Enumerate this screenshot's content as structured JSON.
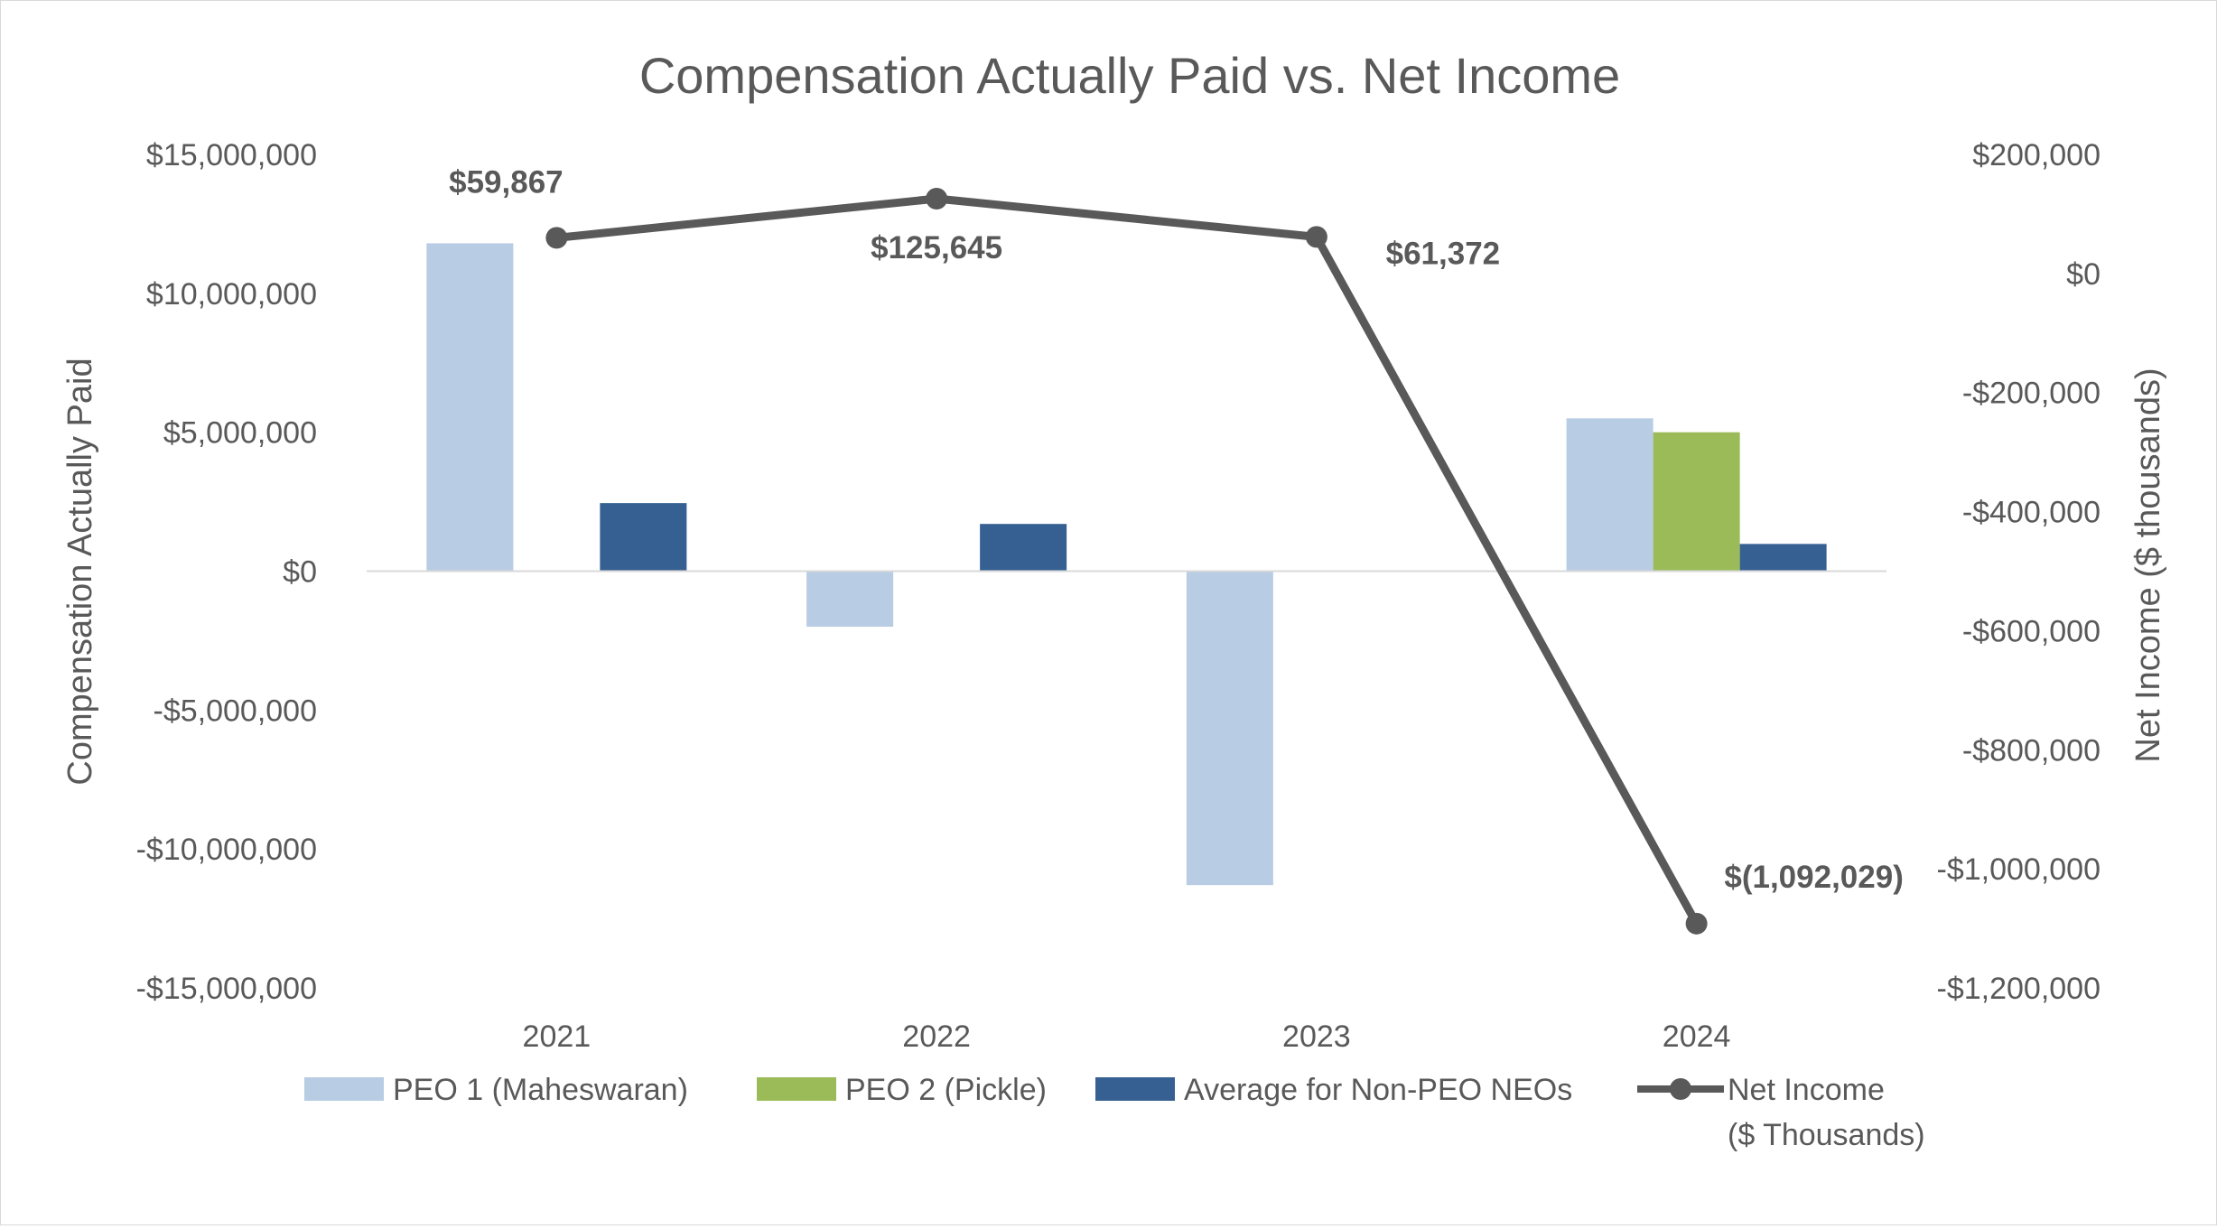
{
  "chart_data": {
    "type": "bar",
    "title": "Compensation Actually Paid vs. Net Income",
    "categories": [
      "2021",
      "2022",
      "2023",
      "2024"
    ],
    "ylabel": "Compensation Actually Paid",
    "y2label": "Net Income ($ thousands)",
    "ylim": [
      -15000000,
      15000000
    ],
    "y2lim": [
      -1200000,
      200000
    ],
    "yticks": [
      15000000,
      10000000,
      5000000,
      0,
      -5000000,
      -10000000,
      -15000000
    ],
    "ytick_labels": [
      "$15,000,000",
      "$10,000,000",
      "$5,000,000",
      "$0",
      "-$5,000,000",
      "-$10,000,000",
      "-$15,000,000"
    ],
    "y2ticks": [
      200000,
      0,
      -200000,
      -400000,
      -600000,
      -800000,
      -1000000,
      -1200000
    ],
    "y2tick_labels": [
      "$200,000",
      "$0",
      "-$200,000",
      "-$400,000",
      "-$600,000",
      "-$800,000",
      "-$1,000,000",
      "-$1,200,000"
    ],
    "series": [
      {
        "name": "PEO 1 (Maheswaran)",
        "kind": "bar",
        "axis": "left",
        "color": "#b8cce4",
        "values": [
          11800000,
          -2000000,
          -11300000,
          5500000
        ]
      },
      {
        "name": "PEO 2 (Pickle)",
        "kind": "bar",
        "axis": "left",
        "color": "#9bbb59",
        "values": [
          null,
          null,
          null,
          5000000
        ]
      },
      {
        "name": "Average for Non-PEO NEOs",
        "kind": "bar",
        "axis": "left",
        "color": "#366092",
        "values": [
          2450000,
          1700000,
          null,
          980000
        ]
      },
      {
        "name": "Net Income",
        "name_line2": "($ Thousands)",
        "kind": "line",
        "axis": "right",
        "color": "#595959",
        "values": [
          59867,
          125645,
          61372,
          -1092029
        ],
        "labels": [
          "$59,867",
          "$125,645",
          "$61,372",
          "$(1,092,029)"
        ]
      }
    ],
    "grid": false,
    "legend_position": "bottom"
  }
}
